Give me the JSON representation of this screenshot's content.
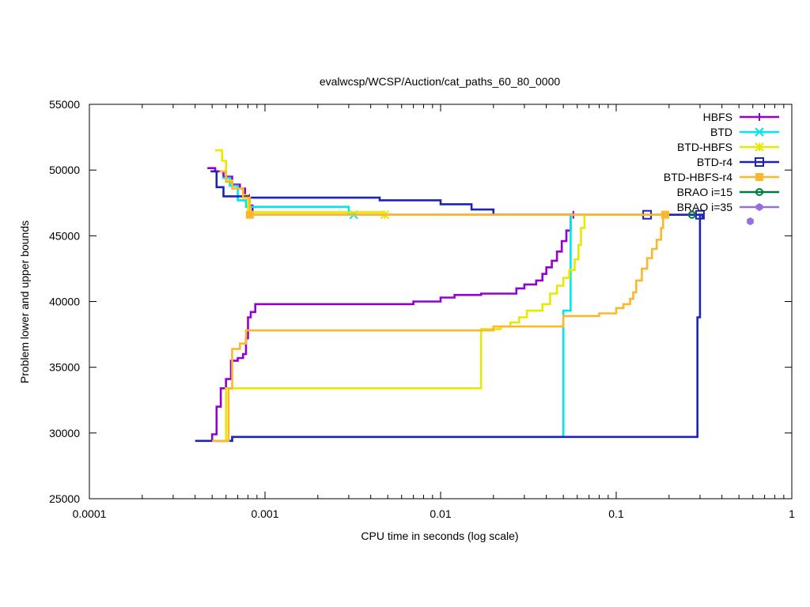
{
  "chart_data": {
    "type": "line",
    "title": "evalwcsp/WCSP/Auction/cat_paths_60_80_0000",
    "xlabel": "CPU time in seconds (log scale)",
    "ylabel": "Problem lower and upper bounds",
    "x_scale": "log",
    "xlim": [
      0.0001,
      1
    ],
    "ylim": [
      25000,
      55000
    ],
    "x_ticks": [
      {
        "value": 0.0001,
        "label": "0.0001"
      },
      {
        "value": 0.001,
        "label": "0.001"
      },
      {
        "value": 0.01,
        "label": "0.01"
      },
      {
        "value": 0.1,
        "label": "0.1"
      },
      {
        "value": 1,
        "label": "1"
      }
    ],
    "y_ticks": [
      {
        "value": 25000,
        "label": "25000"
      },
      {
        "value": 30000,
        "label": "30000"
      },
      {
        "value": 35000,
        "label": "35000"
      },
      {
        "value": 40000,
        "label": "40000"
      },
      {
        "value": 45000,
        "label": "45000"
      },
      {
        "value": 50000,
        "label": "50000"
      },
      {
        "value": 55000,
        "label": "55000"
      }
    ],
    "grid": false,
    "legend_position": "top-right",
    "series": [
      {
        "name": "HBFS",
        "color": "#9400d3",
        "marker": "plus",
        "upper": [
          [
            0.00047,
            50150
          ],
          [
            0.00052,
            50150
          ],
          [
            0.00052,
            49900
          ],
          [
            0.00058,
            49900
          ],
          [
            0.00058,
            49500
          ],
          [
            0.00065,
            49500
          ],
          [
            0.00065,
            48900
          ],
          [
            0.00072,
            48900
          ],
          [
            0.00072,
            48600
          ],
          [
            0.00077,
            48600
          ],
          [
            0.00077,
            48100
          ],
          [
            0.00081,
            48100
          ],
          [
            0.00081,
            47300
          ],
          [
            0.00085,
            47300
          ],
          [
            0.00085,
            46600
          ],
          [
            0.057,
            46600
          ]
        ],
        "lower": [
          [
            0.0005,
            29400
          ],
          [
            0.0005,
            29900
          ],
          [
            0.00053,
            29900
          ],
          [
            0.00053,
            32000
          ],
          [
            0.00056,
            32000
          ],
          [
            0.00056,
            33400
          ],
          [
            0.0006,
            33400
          ],
          [
            0.0006,
            34100
          ],
          [
            0.00064,
            34100
          ],
          [
            0.00064,
            35500
          ],
          [
            0.0007,
            35500
          ],
          [
            0.0007,
            35700
          ],
          [
            0.00075,
            35700
          ],
          [
            0.00075,
            36000
          ],
          [
            0.00078,
            36000
          ],
          [
            0.00078,
            37200
          ],
          [
            0.0008,
            37200
          ],
          [
            0.0008,
            38800
          ],
          [
            0.00083,
            38800
          ],
          [
            0.00083,
            39200
          ],
          [
            0.00088,
            39200
          ],
          [
            0.00088,
            39800
          ],
          [
            0.007,
            39800
          ],
          [
            0.007,
            40000
          ],
          [
            0.01,
            40000
          ],
          [
            0.01,
            40300
          ],
          [
            0.012,
            40300
          ],
          [
            0.012,
            40500
          ],
          [
            0.017,
            40500
          ],
          [
            0.017,
            40600
          ],
          [
            0.027,
            40600
          ],
          [
            0.027,
            41000
          ],
          [
            0.03,
            41000
          ],
          [
            0.03,
            41300
          ],
          [
            0.035,
            41300
          ],
          [
            0.035,
            41600
          ],
          [
            0.038,
            41600
          ],
          [
            0.038,
            42100
          ],
          [
            0.04,
            42100
          ],
          [
            0.04,
            42600
          ],
          [
            0.043,
            42600
          ],
          [
            0.043,
            43100
          ],
          [
            0.046,
            43100
          ],
          [
            0.046,
            43800
          ],
          [
            0.049,
            43800
          ],
          [
            0.049,
            44600
          ],
          [
            0.052,
            44600
          ],
          [
            0.052,
            45400
          ],
          [
            0.055,
            45400
          ],
          [
            0.055,
            46600
          ],
          [
            0.057,
            46600
          ]
        ],
        "end_point": [
          0.057,
          46600
        ]
      },
      {
        "name": "BTD",
        "color": "#00e5ee",
        "marker": "x",
        "upper": [
          [
            0.00057,
            49400
          ],
          [
            0.00063,
            49400
          ],
          [
            0.00063,
            48800
          ],
          [
            0.0007,
            48800
          ],
          [
            0.0007,
            47700
          ],
          [
            0.00078,
            47700
          ],
          [
            0.00078,
            47200
          ],
          [
            0.003,
            47200
          ],
          [
            0.003,
            46600
          ],
          [
            0.0032,
            46600
          ]
        ],
        "lower": [
          [
            0.00055,
            29400
          ],
          [
            0.00065,
            29400
          ],
          [
            0.00065,
            29700
          ],
          [
            0.05,
            29700
          ],
          [
            0.05,
            39300
          ],
          [
            0.055,
            39300
          ],
          [
            0.055,
            46600
          ],
          [
            0.057,
            46600
          ]
        ],
        "end_point": [
          0.0032,
          46600
        ]
      },
      {
        "name": "BTD-HBFS",
        "color": "#e8e800",
        "marker": "star",
        "upper": [
          [
            0.00052,
            51500
          ],
          [
            0.00057,
            51500
          ],
          [
            0.00057,
            50700
          ],
          [
            0.0006,
            50700
          ],
          [
            0.0006,
            49200
          ],
          [
            0.00065,
            49200
          ],
          [
            0.00065,
            48600
          ],
          [
            0.00075,
            48600
          ],
          [
            0.00075,
            48100
          ],
          [
            0.0008,
            48100
          ],
          [
            0.0008,
            46800
          ],
          [
            0.0048,
            46800
          ]
        ],
        "lower": [
          [
            0.00055,
            29400
          ],
          [
            0.0006,
            29400
          ],
          [
            0.0006,
            33400
          ],
          [
            0.017,
            33400
          ],
          [
            0.017,
            37900
          ],
          [
            0.022,
            37900
          ],
          [
            0.022,
            38100
          ],
          [
            0.025,
            38100
          ],
          [
            0.025,
            38400
          ],
          [
            0.028,
            38400
          ],
          [
            0.028,
            38800
          ],
          [
            0.031,
            38800
          ],
          [
            0.031,
            39300
          ],
          [
            0.038,
            39300
          ],
          [
            0.038,
            39800
          ],
          [
            0.042,
            39800
          ],
          [
            0.042,
            40600
          ],
          [
            0.046,
            40600
          ],
          [
            0.046,
            41200
          ],
          [
            0.05,
            41200
          ],
          [
            0.05,
            41800
          ],
          [
            0.054,
            41800
          ],
          [
            0.054,
            42400
          ],
          [
            0.058,
            42400
          ],
          [
            0.058,
            43200
          ],
          [
            0.061,
            43200
          ],
          [
            0.061,
            44300
          ],
          [
            0.063,
            44300
          ],
          [
            0.063,
            45600
          ],
          [
            0.066,
            45600
          ],
          [
            0.066,
            46600
          ],
          [
            0.067,
            46600
          ]
        ],
        "end_point": [
          0.0048,
          46600
        ]
      },
      {
        "name": "BTD-r4",
        "color": "#1c24b8",
        "marker": "square",
        "upper": [
          [
            0.00049,
            49900
          ],
          [
            0.00053,
            49900
          ],
          [
            0.00053,
            48700
          ],
          [
            0.00058,
            48700
          ],
          [
            0.00058,
            48000
          ],
          [
            0.0008,
            48000
          ],
          [
            0.0008,
            47900
          ],
          [
            0.0045,
            47900
          ],
          [
            0.0045,
            47700
          ],
          [
            0.01,
            47700
          ],
          [
            0.01,
            47400
          ],
          [
            0.015,
            47400
          ],
          [
            0.015,
            47000
          ],
          [
            0.02,
            47000
          ],
          [
            0.02,
            46600
          ],
          [
            0.31,
            46600
          ],
          [
            0.31,
            46300
          ]
        ],
        "lower": [
          [
            0.0004,
            29400
          ],
          [
            0.00065,
            29400
          ],
          [
            0.00065,
            29700
          ],
          [
            0.29,
            29700
          ],
          [
            0.29,
            38800
          ],
          [
            0.3,
            38800
          ],
          [
            0.3,
            46600
          ],
          [
            0.31,
            46600
          ]
        ],
        "end_point": [
          0.3,
          46600
        ],
        "end_point2": [
          0.15,
          46600
        ]
      },
      {
        "name": "BTD-HBFS-r4",
        "color": "#fbb82a",
        "marker": "filled-square",
        "upper": [
          [
            0.00055,
            49900
          ],
          [
            0.0006,
            49900
          ],
          [
            0.0006,
            49100
          ],
          [
            0.00065,
            49100
          ],
          [
            0.00065,
            48600
          ],
          [
            0.00075,
            48600
          ],
          [
            0.00075,
            47900
          ],
          [
            0.00082,
            47900
          ],
          [
            0.00082,
            46600
          ],
          [
            0.19,
            46600
          ]
        ],
        "lower": [
          [
            0.0005,
            29400
          ],
          [
            0.00062,
            29400
          ],
          [
            0.00062,
            33400
          ],
          [
            0.00065,
            33400
          ],
          [
            0.00065,
            36400
          ],
          [
            0.00072,
            36400
          ],
          [
            0.00072,
            36800
          ],
          [
            0.00078,
            36800
          ],
          [
            0.00078,
            37800
          ],
          [
            0.02,
            37800
          ],
          [
            0.02,
            38100
          ],
          [
            0.05,
            38100
          ],
          [
            0.05,
            38900
          ],
          [
            0.08,
            38900
          ],
          [
            0.08,
            39100
          ],
          [
            0.1,
            39100
          ],
          [
            0.1,
            39500
          ],
          [
            0.11,
            39500
          ],
          [
            0.11,
            39800
          ],
          [
            0.12,
            39800
          ],
          [
            0.12,
            40200
          ],
          [
            0.125,
            40200
          ],
          [
            0.125,
            40700
          ],
          [
            0.13,
            40700
          ],
          [
            0.13,
            41600
          ],
          [
            0.14,
            41600
          ],
          [
            0.14,
            42500
          ],
          [
            0.15,
            42500
          ],
          [
            0.15,
            43300
          ],
          [
            0.16,
            43300
          ],
          [
            0.16,
            44000
          ],
          [
            0.17,
            44000
          ],
          [
            0.17,
            44700
          ],
          [
            0.18,
            44700
          ],
          [
            0.18,
            45600
          ],
          [
            0.185,
            45600
          ],
          [
            0.185,
            46600
          ],
          [
            0.19,
            46600
          ]
        ],
        "end_point": [
          0.19,
          46600
        ],
        "end_point2": [
          0.00082,
          46600
        ]
      },
      {
        "name": "BRAO i=15",
        "color": "#007a3d",
        "marker": "circle",
        "end_point": [
          0.27,
          46600
        ]
      },
      {
        "name": "BRAO i=35",
        "color": "#9370db",
        "marker": "filled-hexagon",
        "end_point": [
          0.58,
          46100
        ]
      }
    ]
  }
}
